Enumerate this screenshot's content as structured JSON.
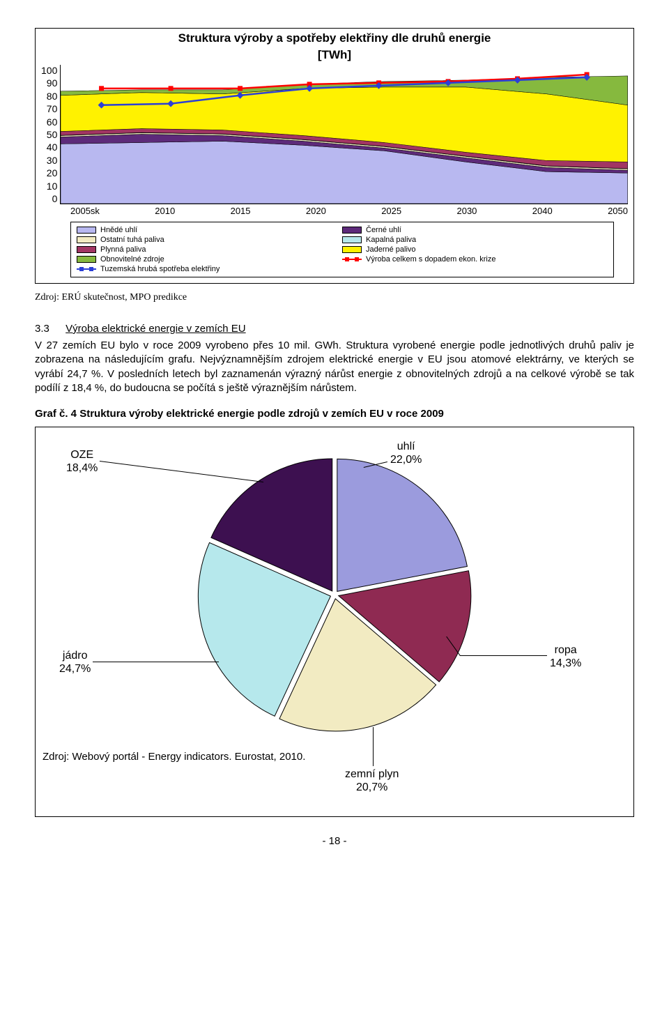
{
  "areaChart": {
    "title": "Struktura výroby a spotřeby elektřiny dle druhů energie",
    "subtitle": "[TWh]",
    "ylim": [
      0,
      100
    ],
    "ytick_step": 10,
    "yticks": [
      0,
      10,
      20,
      30,
      40,
      50,
      60,
      70,
      80,
      90,
      100
    ],
    "xcategories": [
      "2005sk",
      "2010",
      "2015",
      "2020",
      "2025",
      "2030",
      "2040",
      "2050"
    ],
    "series": [
      {
        "name": "Hnědé uhlí",
        "color": "#b8b8f0",
        "top": [
          43,
          44,
          45,
          42,
          38,
          30,
          23,
          22
        ]
      },
      {
        "name": "Černé uhlí",
        "color": "#5d2a7a",
        "top": [
          48,
          50,
          49,
          45,
          40,
          33,
          26,
          24
        ]
      },
      {
        "name": "Ostatní tuhá paliva",
        "color": "#f2ebc2",
        "top": [
          49,
          51,
          50,
          46,
          41,
          34,
          27,
          25
        ]
      },
      {
        "name": "Kapalná paliva",
        "color": "#b6e8ec",
        "top": [
          49.2,
          51.2,
          50.2,
          46.2,
          41.2,
          34.2,
          27.2,
          25.2
        ]
      },
      {
        "name": "Plynná paliva",
        "color": "#a23563",
        "top": [
          52,
          54,
          53,
          49,
          44,
          37,
          31,
          30
        ]
      },
      {
        "name": "Jaderné palivo",
        "color": "#fff200",
        "top": [
          78,
          80,
          79,
          83,
          84,
          84,
          79,
          71
        ]
      },
      {
        "name": "Obnovitelné zdroje",
        "color": "#86b93e",
        "top": [
          81,
          82,
          82,
          86,
          88,
          89,
          91,
          92
        ]
      }
    ],
    "lines": [
      {
        "name": "Výroba celkem s dopadem ekon. krize",
        "color": "#ff0000",
        "marker": "square",
        "values": [
          83,
          83,
          83,
          86,
          87,
          88,
          90,
          93
        ]
      },
      {
        "name": "Tuzemská hrubá spotřeba elektřiny",
        "color": "#2b3fd6",
        "marker": "diamond",
        "values": [
          71,
          72,
          78,
          83,
          85,
          87,
          89,
          91
        ]
      }
    ],
    "legend": [
      {
        "label": "Hnědé uhlí",
        "color": "#b8b8f0",
        "type": "swatch"
      },
      {
        "label": "Černé uhlí",
        "color": "#5d2a7a",
        "type": "swatch"
      },
      {
        "label": "Ostatní tuhá paliva",
        "color": "#f2ebc2",
        "type": "swatch"
      },
      {
        "label": "Kapalná paliva",
        "color": "#b6e8ec",
        "type": "swatch"
      },
      {
        "label": "Plynná paliva",
        "color": "#a23563",
        "type": "swatch"
      },
      {
        "label": "Jaderné palivo",
        "color": "#fff200",
        "type": "swatch"
      },
      {
        "label": "Obnovitelné zdroje",
        "color": "#86b93e",
        "type": "swatch"
      },
      {
        "label": "Výroba celkem s dopadem ekon. krize",
        "color": "#ff0000",
        "type": "line"
      },
      {
        "label": "Tuzemská hrubá spotřeba elektřiny",
        "color": "#2b3fd6",
        "type": "line"
      }
    ],
    "source": "Zdroj: ERÚ skutečnost, MPO predikce"
  },
  "section": {
    "number": "3.3",
    "title": "Výroba elektrické energie v zemích EU",
    "paragraph": "V 27 zemích EU bylo v roce 2009 vyrobeno přes 10 mil. GWh. Struktura vyrobené energie podle jednotlivých druhů paliv je zobrazena na následujícím grafu. Nejvýznamnějším zdrojem elektrické energie v EU jsou atomové elektrárny, ve kterých se vyrábí 24,7 %. V posledních letech byl zaznamenán výrazný nárůst energie z obnovitelných zdrojů a na celkové výrobě se tak podílí z 18,4 %, do budoucna se počítá s ještě výraznějším nárůstem."
  },
  "pieChart": {
    "title": "Graf č. 4  Struktura výroby elektrické energie podle zdrojů v zemích EU v roce 2009",
    "type": "pie",
    "background_color": "#ffffff",
    "border_color": "#000000",
    "slices": [
      {
        "label": "uhlí",
        "value_label": "22,0%",
        "value": 22.0,
        "color": "#9b9bdd"
      },
      {
        "label": "ropa",
        "value_label": "14,3%",
        "value": 14.3,
        "color": "#8f2a52"
      },
      {
        "label": "zemní plyn",
        "value_label": "20,7%",
        "value": 20.7,
        "color": "#f2ebc2"
      },
      {
        "label": "jádro",
        "value_label": "24,7%",
        "value": 24.7,
        "color": "#b6e8ec"
      },
      {
        "label": "OZE",
        "value_label": "18,4%",
        "value": 18.4,
        "color": "#3d1050"
      }
    ],
    "source": "Zdroj: Webový portál - Energy indicators. Eurostat, 2010."
  },
  "pageNumber": "- 18 -"
}
